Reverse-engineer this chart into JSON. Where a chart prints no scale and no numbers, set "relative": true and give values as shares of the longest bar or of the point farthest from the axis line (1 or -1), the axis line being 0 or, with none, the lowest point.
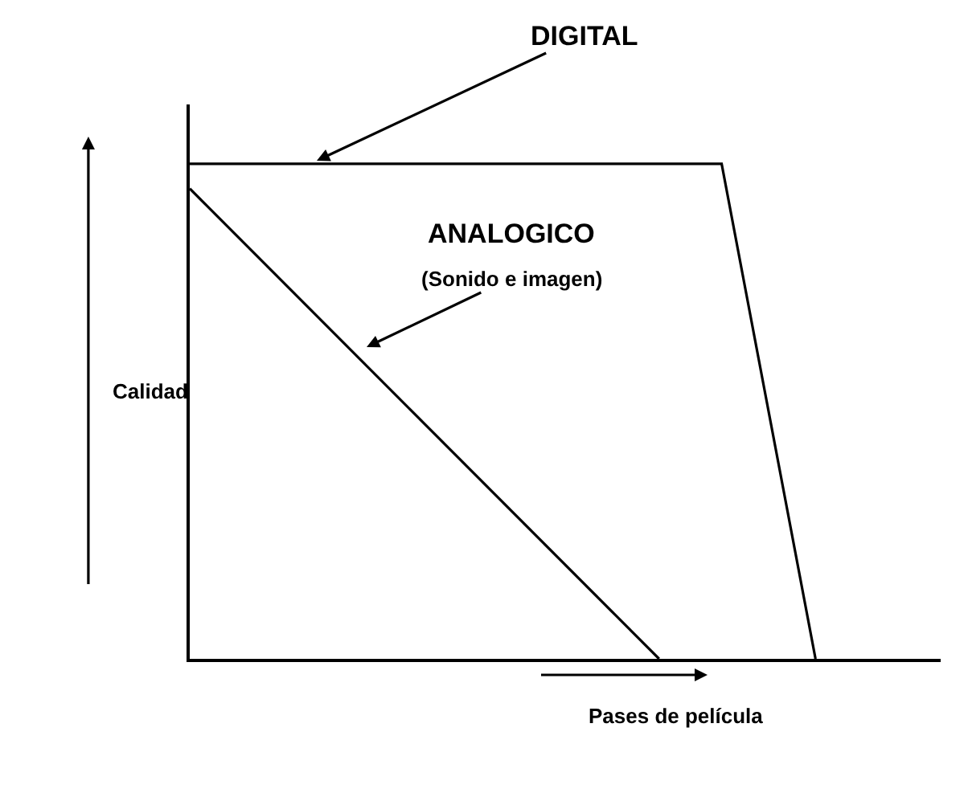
{
  "chart_data": {
    "type": "line",
    "relative": true,
    "xlabel": "Pases de película",
    "ylabel": "Calidad",
    "legend": false,
    "marker": "none",
    "line_style": "solid",
    "categories": [
      null,
      null,
      null,
      null,
      null,
      null,
      null,
      null,
      null,
      null,
      null,
      null,
      null,
      null,
      null,
      null,
      null,
      null,
      null,
      null,
      null,
      null,
      null,
      null,
      null
    ],
    "series": [
      {
        "color": "#000000",
        "values": [
          1,
          null,
          null,
          null,
          null,
          null,
          null,
          null,
          null,
          null,
          null,
          null,
          null,
          null,
          null,
          null,
          null,
          1,
          null,
          null,
          0,
          null,
          null,
          null,
          null
        ]
      },
      {
        "color": "#000000",
        "values": [
          0.95,
          null,
          null,
          null,
          null,
          null,
          null,
          null,
          null,
          null,
          null,
          null,
          null,
          null,
          null,
          0,
          null,
          null,
          null,
          null,
          null,
          null,
          null,
          null,
          null
        ]
      }
    ],
    "annotations": [
      "DIGITAL",
      "ANALOGICO",
      "(Sonido e imagen)"
    ]
  }
}
